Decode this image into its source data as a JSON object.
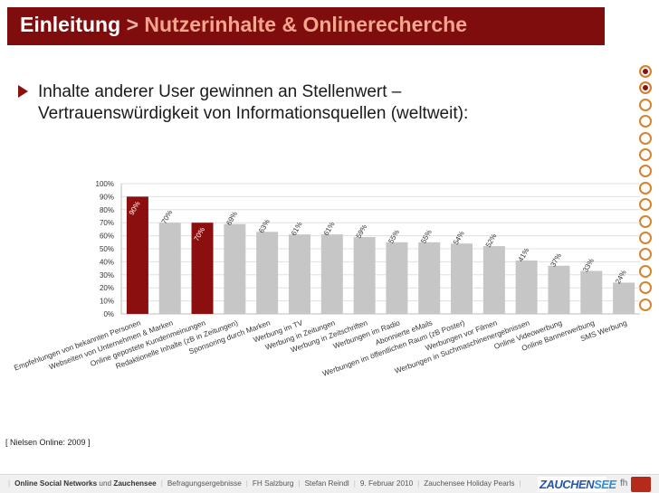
{
  "title": {
    "main": "Einleitung",
    "separator": ">",
    "sub": "Nutzerinhalte & Onlinerecherche"
  },
  "bullet": {
    "line1": "Inhalte anderer User gewinnen an Stellenwert –",
    "line2": "Vertrauenswürdigkeit von Informationsquellen (weltweit):"
  },
  "nav": {
    "dots": [
      {
        "state": "active"
      },
      {
        "state": "active"
      },
      {
        "state": "inactive"
      },
      {
        "state": "inactive"
      },
      {
        "state": "inactive"
      },
      {
        "state": "inactive"
      },
      {
        "state": "inactive"
      },
      {
        "state": "inactive"
      },
      {
        "state": "inactive"
      },
      {
        "state": "inactive"
      },
      {
        "state": "inactive"
      },
      {
        "state": "inactive"
      },
      {
        "state": "inactive"
      },
      {
        "state": "inactive"
      },
      {
        "state": "inactive"
      }
    ]
  },
  "chart_data": {
    "type": "bar",
    "title": "",
    "xlabel": "",
    "ylabel": "",
    "ylim": [
      0,
      100
    ],
    "yticks": [
      "0%",
      "10%",
      "20%",
      "30%",
      "40%",
      "50%",
      "60%",
      "70%",
      "80%",
      "90%",
      "100%"
    ],
    "grid": true,
    "legend": "none",
    "categories": [
      "Empfehlungen von bekannten Personen",
      "Webseiten von Unternehmen & Marken",
      "Online gepostete Kundenmeinungen",
      "Redaktionelle Inhalte (zB in Zeitungen)",
      "Sponsoring durch Marken",
      "Werbung im TV",
      "Werbung in Zeitungen",
      "Werbung in Zeitschriften",
      "Werbungen im Radio",
      "Abonnierte eMails",
      "Werbungen im öffentlichen Raum (zB Poster)",
      "Werbungen vor Filmen",
      "Werbungen in Suchmaschinenergebnissen",
      "Online Videowerbung",
      "Online Bannerwerbung",
      "SMS Werbung"
    ],
    "values": [
      90,
      70,
      70,
      69,
      63,
      61,
      61,
      59,
      55,
      55,
      54,
      52,
      41,
      37,
      33,
      24
    ],
    "labels": [
      "90%",
      "70%",
      "70%",
      "69%",
      "63%",
      "61%",
      "61%",
      "59%",
      "55%",
      "55%",
      "54%",
      "52%",
      "41%",
      "37%",
      "33%",
      "24%"
    ],
    "highlighted": [
      0,
      2
    ],
    "colors": {
      "highlight": "#8b0f0f",
      "default": "#c6c6c6",
      "grid": "#e0e0e0",
      "axis": "#bdbdbd"
    }
  },
  "source": "[ Nielsen Online: 2009 ]",
  "footer": {
    "item1_bold": "Online Social Networks",
    "item1_mid": "und",
    "item1_bold2": "Zauchensee",
    "item2": "Befragungsergebnisse",
    "item3": "FH Salzburg",
    "item4": "Stefan Reindl",
    "item5": "9. Februar 2010",
    "item6": "Zauchensee Holiday Pearls",
    "logo_a": "ZAUCHEN",
    "logo_b": "SEE",
    "fh": "fh"
  }
}
